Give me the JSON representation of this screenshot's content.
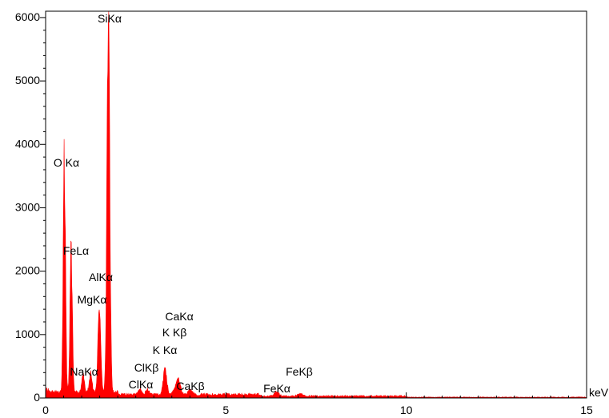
{
  "chart_data": {
    "type": "line",
    "title": "",
    "xlabel": "",
    "ylabel": "",
    "x_unit": "keV",
    "xlim": [
      0,
      15
    ],
    "ylim": [
      0,
      6100
    ],
    "x_ticks": [
      0,
      5,
      10,
      15
    ],
    "y_ticks": [
      0,
      1000,
      2000,
      3000,
      4000,
      5000,
      6000
    ],
    "grid": false,
    "legend": "none",
    "fill_color": "#ff0000",
    "baseline_counts": 60,
    "peaks": [
      {
        "label": "O Kα",
        "energy": 0.52,
        "counts": 3650
      },
      {
        "label": "FeLα",
        "energy": 0.71,
        "counts": 2200
      },
      {
        "label": "NaKα",
        "energy": 1.04,
        "counts": 300
      },
      {
        "label": "MgKα",
        "energy": 1.25,
        "counts": 320
      },
      {
        "label": "AlKα",
        "energy": 1.49,
        "counts": 1450
      },
      {
        "label": "SiKα",
        "energy": 1.74,
        "counts": 5900
      },
      {
        "label": "ClKα",
        "energy": 2.62,
        "counts": 90
      },
      {
        "label": "ClKβ",
        "energy": 2.82,
        "counts": 75
      },
      {
        "label": "K Kα",
        "energy": 3.31,
        "counts": 400
      },
      {
        "label": "K Kβ",
        "energy": 3.59,
        "counts": 110
      },
      {
        "label": "CaKα",
        "energy": 3.69,
        "counts": 230
      },
      {
        "label": "CaKβ",
        "energy": 4.01,
        "counts": 80
      },
      {
        "label": "FeKα",
        "energy": 6.4,
        "counts": 70
      },
      {
        "label": "FeKβ",
        "energy": 7.06,
        "counts": 40
      }
    ]
  }
}
